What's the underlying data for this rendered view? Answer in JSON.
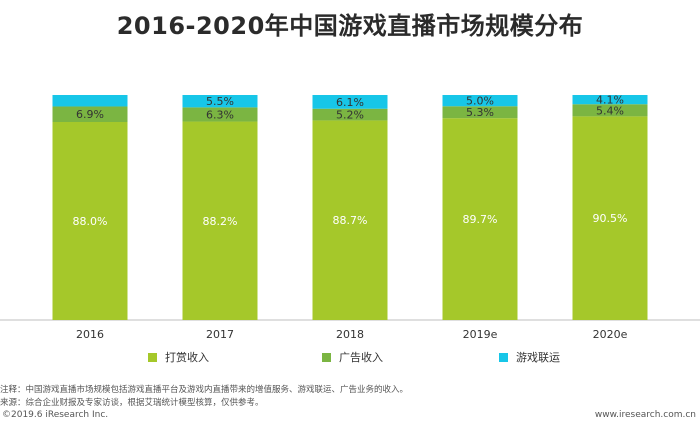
{
  "chart_data": {
    "type": "bar",
    "stacked": true,
    "title": "2016-2020年中国游戏直播市场规模分布",
    "categories": [
      "2016",
      "2017",
      "2018",
      "2019e",
      "2020e"
    ],
    "series": [
      {
        "name": "打赏收入",
        "color": "#a5c82a",
        "values": [
          88.0,
          88.2,
          88.7,
          89.7,
          90.5
        ],
        "labels": [
          "88.0%",
          "88.2%",
          "88.7%",
          "89.7%",
          "90.5%"
        ]
      },
      {
        "name": "广告收入",
        "color": "#7bb542",
        "values": [
          6.9,
          6.3,
          5.2,
          5.3,
          5.4
        ],
        "labels": [
          "6.9%",
          "6.3%",
          "5.2%",
          "5.3%",
          "5.4%"
        ]
      },
      {
        "name": "游戏联运",
        "color": "#17c6e8",
        "values": [
          5.1,
          5.5,
          6.1,
          5.0,
          4.1
        ],
        "labels": [
          "",
          "5.5%",
          "6.1%",
          "5.0%",
          "4.1%"
        ]
      }
    ],
    "ylim": [
      0,
      100
    ],
    "legend_position": "bottom"
  },
  "notes": {
    "note_line": "注释：中国游戏直播市场规模包括游戏直播平台及游戏内直播带来的增值服务、游戏联运、广告业务的收入。",
    "source_line": "来源：综合企业财报及专家访谈，根据艾瑞统计模型核算，仅供参考。"
  },
  "footer": {
    "copyright": "©2019.6 iResearch Inc.",
    "website": "www.iresearch.com.cn"
  }
}
